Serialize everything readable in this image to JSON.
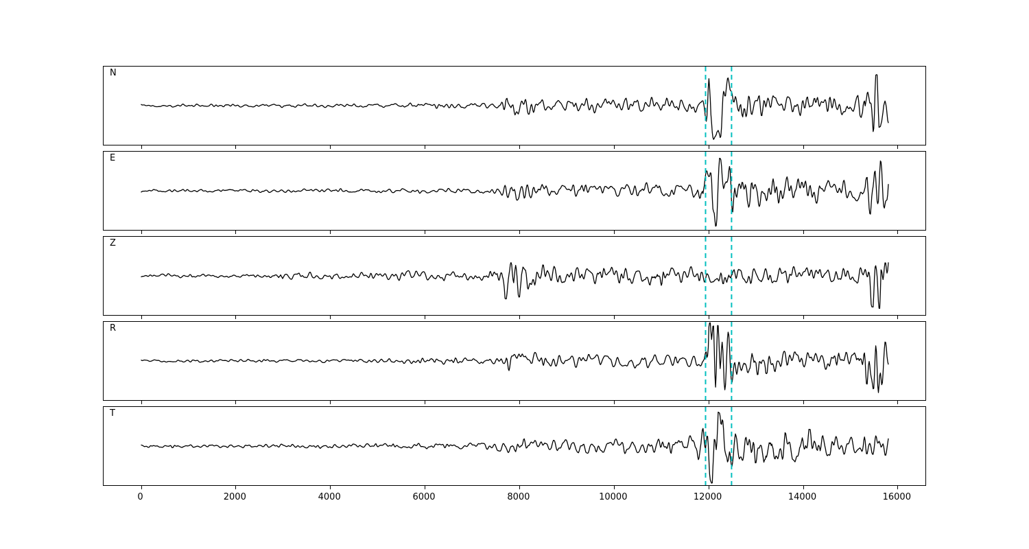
{
  "figure": {
    "background": "#ffffff",
    "trace_color": "#000000",
    "border_color": "#000000"
  },
  "chart_data": {
    "type": "line",
    "title": "",
    "xlabel": "",
    "ylabel": "",
    "description": "Five-channel seismogram (components N, E, Z, R, T) with two cyan dashed pick lines",
    "x_ticks": [
      0,
      2000,
      4000,
      6000,
      8000,
      10000,
      12000,
      14000,
      16000
    ],
    "xlim": [
      -790,
      16590
    ],
    "data_x_range": [
      0,
      15800
    ],
    "grid": false,
    "legend": "none",
    "trace_color": "#000000",
    "pick_lines": {
      "color": "#00bfbf",
      "style": "dashed",
      "values": [
        11940,
        12490
      ]
    },
    "channels": [
      {
        "label": "N",
        "seed": 41,
        "envelope": [
          [
            0,
            0.04
          ],
          [
            2500,
            0.045
          ],
          [
            5000,
            0.06
          ],
          [
            6500,
            0.08
          ],
          [
            7600,
            0.09
          ],
          [
            7720,
            0.28
          ],
          [
            8150,
            0.3
          ],
          [
            8500,
            0.18
          ],
          [
            9500,
            0.2
          ],
          [
            10700,
            0.22
          ],
          [
            11600,
            0.2
          ],
          [
            11920,
            0.22
          ],
          [
            12000,
            1.0
          ],
          [
            12350,
            0.85
          ],
          [
            12600,
            0.4
          ],
          [
            13200,
            0.33
          ],
          [
            14200,
            0.26
          ],
          [
            15100,
            0.27
          ],
          [
            15400,
            0.65
          ],
          [
            15650,
            0.9
          ],
          [
            15800,
            0.45
          ]
        ]
      },
      {
        "label": "E",
        "seed": 87,
        "envelope": [
          [
            0,
            0.04
          ],
          [
            2500,
            0.05
          ],
          [
            5000,
            0.06
          ],
          [
            7000,
            0.08
          ],
          [
            7600,
            0.09
          ],
          [
            7720,
            0.32
          ],
          [
            8100,
            0.28
          ],
          [
            8600,
            0.18
          ],
          [
            9600,
            0.2
          ],
          [
            10800,
            0.22
          ],
          [
            11700,
            0.22
          ],
          [
            11930,
            0.45
          ],
          [
            12050,
            1.0
          ],
          [
            12300,
            0.8
          ],
          [
            12600,
            0.45
          ],
          [
            13400,
            0.38
          ],
          [
            14300,
            0.33
          ],
          [
            15000,
            0.28
          ],
          [
            15350,
            0.5
          ],
          [
            15600,
            0.85
          ],
          [
            15800,
            0.45
          ]
        ]
      },
      {
        "label": "Z",
        "seed": 23,
        "envelope": [
          [
            0,
            0.03
          ],
          [
            350,
            0.035
          ],
          [
            550,
            0.09
          ],
          [
            800,
            0.05
          ],
          [
            2700,
            0.045
          ],
          [
            3000,
            0.11
          ],
          [
            3500,
            0.12
          ],
          [
            4000,
            0.09
          ],
          [
            5200,
            0.1
          ],
          [
            5500,
            0.17
          ],
          [
            6000,
            0.17
          ],
          [
            6500,
            0.12
          ],
          [
            7500,
            0.13
          ],
          [
            7700,
            0.6
          ],
          [
            8000,
            0.55
          ],
          [
            8400,
            0.3
          ],
          [
            9300,
            0.24
          ],
          [
            10300,
            0.27
          ],
          [
            11300,
            0.24
          ],
          [
            12200,
            0.25
          ],
          [
            13200,
            0.28
          ],
          [
            13800,
            0.26
          ],
          [
            14700,
            0.22
          ],
          [
            15250,
            0.28
          ],
          [
            15450,
            0.8
          ],
          [
            15650,
            0.85
          ],
          [
            15800,
            0.35
          ]
        ]
      },
      {
        "label": "R",
        "seed": 64,
        "envelope": [
          [
            0,
            0.04
          ],
          [
            2500,
            0.045
          ],
          [
            5000,
            0.06
          ],
          [
            6500,
            0.09
          ],
          [
            7600,
            0.09
          ],
          [
            7720,
            0.3
          ],
          [
            8150,
            0.28
          ],
          [
            8600,
            0.18
          ],
          [
            9600,
            0.22
          ],
          [
            10800,
            0.22
          ],
          [
            11600,
            0.2
          ],
          [
            11920,
            0.25
          ],
          [
            12020,
            1.0
          ],
          [
            12350,
            0.85
          ],
          [
            12650,
            0.4
          ],
          [
            13300,
            0.32
          ],
          [
            14300,
            0.26
          ],
          [
            15050,
            0.25
          ],
          [
            15350,
            0.6
          ],
          [
            15600,
            0.9
          ],
          [
            15800,
            0.45
          ]
        ]
      },
      {
        "label": "T",
        "seed": 150,
        "envelope": [
          [
            0,
            0.04
          ],
          [
            2500,
            0.05
          ],
          [
            5000,
            0.07
          ],
          [
            7000,
            0.09
          ],
          [
            7700,
            0.2
          ],
          [
            8400,
            0.18
          ],
          [
            9300,
            0.22
          ],
          [
            10400,
            0.22
          ],
          [
            11500,
            0.2
          ],
          [
            11930,
            0.55
          ],
          [
            12080,
            1.0
          ],
          [
            12350,
            0.75
          ],
          [
            12700,
            0.45
          ],
          [
            13300,
            0.42
          ],
          [
            13800,
            0.5
          ],
          [
            14300,
            0.4
          ],
          [
            14900,
            0.28
          ],
          [
            15400,
            0.32
          ],
          [
            15800,
            0.28
          ]
        ]
      }
    ]
  }
}
